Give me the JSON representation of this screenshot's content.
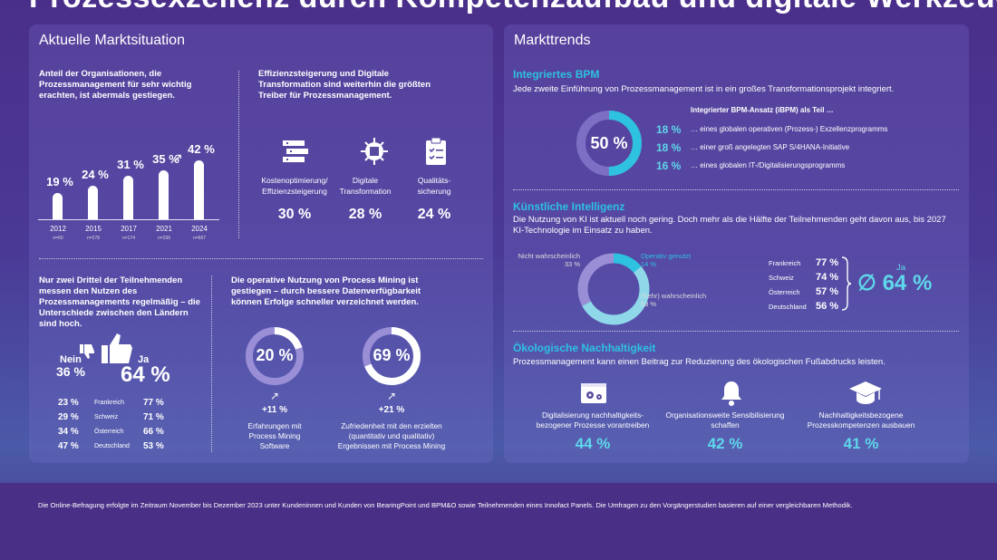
{
  "title": "Prozessexzellenz durch Kompetenzaufbau und digitale Werkzeuge",
  "left": {
    "heading": "Aktuelle Marktsituation",
    "share": {
      "text": "Anteil der Organisationen, die Prozessmanagement für sehr wichtig erachten, ist abermals gestiegen.",
      "bars": [
        {
          "year": "2012",
          "pct": "19 %",
          "value": 19,
          "n": "n=60"
        },
        {
          "year": "2015",
          "pct": "24 %",
          "value": 24,
          "n": "n=278"
        },
        {
          "year": "2017",
          "pct": "31 %",
          "value": 31,
          "n": "n=174"
        },
        {
          "year": "2021",
          "pct": "35 %",
          "value": 35,
          "n": "n=336"
        },
        {
          "year": "2024",
          "pct": "42 %",
          "value": 42,
          "n": "n=667"
        }
      ],
      "arrow": "↗"
    },
    "drivers": {
      "text": "Effizienzsteigerung und Digitale Transformation sind weiterhin die größten Treiber für Prozessmanagement.",
      "items": [
        {
          "label": "Kostenoptimierung/ Effizienzsteigerung",
          "pct": "30 %",
          "icon": "cost-icon"
        },
        {
          "label": "Digitale Transformation",
          "pct": "28 %",
          "icon": "chip-icon"
        },
        {
          "label": "Qualitäts- sicherung",
          "pct": "24 %",
          "icon": "clipboard-icon"
        }
      ]
    },
    "benefit": {
      "text": "Nur zwei Drittel der Teilnehmenden messen den Nutzen des Prozessmanagements regelmäßig – die Unterschiede zwischen den Ländern sind hoch.",
      "nein_label": "Nein",
      "nein_pct": "36 %",
      "ja_label": "Ja",
      "ja_pct": "64 %",
      "rows": [
        {
          "left": "23 %",
          "country": "Frankreich",
          "right": "77 %"
        },
        {
          "left": "29 %",
          "country": "Schweiz",
          "right": "71 %"
        },
        {
          "left": "34 %",
          "country": "Österreich",
          "right": "66 %"
        },
        {
          "left": "47 %",
          "country": "Deutschland",
          "right": "53 %"
        }
      ]
    },
    "mining": {
      "text": "Die operative Nutzung von Process Mining ist gestiegen – durch bessere Datenverfügbarkeit können Erfolge schneller verzeichnet werden.",
      "donuts": [
        {
          "pct": "20 %",
          "value": 20,
          "delta": "+11 %",
          "arrow": "↗",
          "label": "Erfahrungen mit Process Mining Software"
        },
        {
          "pct": "69 %",
          "value": 69,
          "delta": "+21 %",
          "arrow": "↗",
          "label": "Zufriedenheit mit den erzielten (quantitativ und qualitativ) Ergebnissen mit Process Mining"
        }
      ]
    }
  },
  "right": {
    "heading": "Markttrends",
    "ibpm": {
      "title": "Integriertes BPM",
      "text": "Jede zweite Einführung von Prozessmanagement ist in ein großes Transformationsprojekt integriert.",
      "donut_pct": "50 %",
      "donut_value": 50,
      "list_title": "Integrierter BPM-Ansatz (iBPM) als Teil …",
      "items": [
        {
          "pct": "18 %",
          "label": "… eines globalen operativen (Prozess-) Exzellenzprogramms"
        },
        {
          "pct": "18 %",
          "label": "… einer groß angelegten SAP S/4HANA-Initiative"
        },
        {
          "pct": "16 %",
          "label": "… eines globalen IT-/Digitalisierungsprogramms"
        }
      ]
    },
    "ki": {
      "title": "Künstliche Intelligenz",
      "text": "Die Nutzung von KI ist aktuell noch gering. Doch mehr als die Hälfte der Teilnehmenden geht davon aus, bis 2027 KI-Technologie im Einsatz zu haben.",
      "segments": [
        {
          "label": "Nicht wahrscheinlich",
          "pct": "33 %",
          "value": 33,
          "color": "#9a8fd6"
        },
        {
          "label": "Operativ genutzt",
          "pct": "14 %",
          "value": 14,
          "color": "#2ec1e0"
        },
        {
          "label": "(Sehr) wahrscheinlich",
          "pct": "53 %",
          "value": 53,
          "color": "#8fd8ea"
        }
      ],
      "countries": [
        {
          "country": "Frankreich",
          "pct": "77 %"
        },
        {
          "country": "Schweiz",
          "pct": "74 %"
        },
        {
          "country": "Österreich",
          "pct": "57 %"
        },
        {
          "country": "Deutschland",
          "pct": "56 %"
        }
      ],
      "ja_label": "Ja",
      "avg": "∅ 64 %"
    },
    "eco": {
      "title": "Ökologische Nachhaltigkeit",
      "text": "Prozessmanagement kann einen Beitrag zur Reduzierung des ökologischen Fußabdrucks leisten.",
      "items": [
        {
          "label": "Digitalisierung nachhaltigkeits- bezogener Prozesse vorantreiben",
          "pct": "44 %",
          "icon": "settings-screen-icon"
        },
        {
          "label": "Organisationsweite Sensibilisierung schaffen",
          "pct": "42 %",
          "icon": "bell-icon"
        },
        {
          "label": "Nachhaltigkeitsbezogene Prozesskompetenzen ausbauen",
          "pct": "41 %",
          "icon": "graduation-cap-icon"
        }
      ]
    }
  },
  "footer": "Die Online-Befragung erfolgte im Zeitraum November bis Dezember 2023 unter Kundeninnen und Kunden von BearingPoint und BPM&O sowie Teilnehmenden eines Innofact Panels. Die Umfragen zu den Vorgängerstudien basieren auf einer vergleichbaren Methodik."
}
